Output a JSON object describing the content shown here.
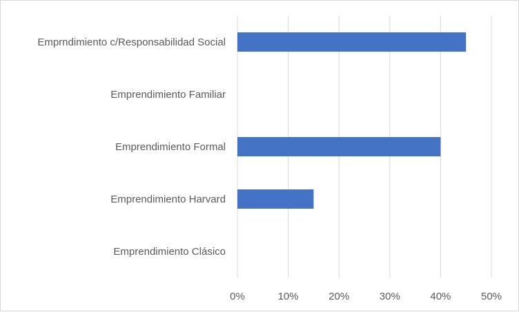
{
  "chart_data": {
    "type": "bar",
    "orientation": "horizontal",
    "categories": [
      "Emprndimiento c/Responsabilidad Social",
      "Emprendimiento Familiar",
      "Emprendimiento Formal",
      "Emprendimiento Harvard",
      "Emprendimiento Clásico"
    ],
    "values": [
      0.45,
      0.0,
      0.4,
      0.15,
      0.0
    ],
    "title": "",
    "xlabel": "",
    "ylabel": "",
    "xlim": [
      0,
      0.5
    ],
    "xticks": [
      0,
      0.1,
      0.2,
      0.3,
      0.4,
      0.5
    ],
    "xtick_labels": [
      "0%",
      "10%",
      "20%",
      "30%",
      "40%",
      "50%"
    ],
    "grid": "vertical",
    "legend": "none",
    "bar_color": "#4472c4",
    "grid_color": "#d9d9d9"
  }
}
